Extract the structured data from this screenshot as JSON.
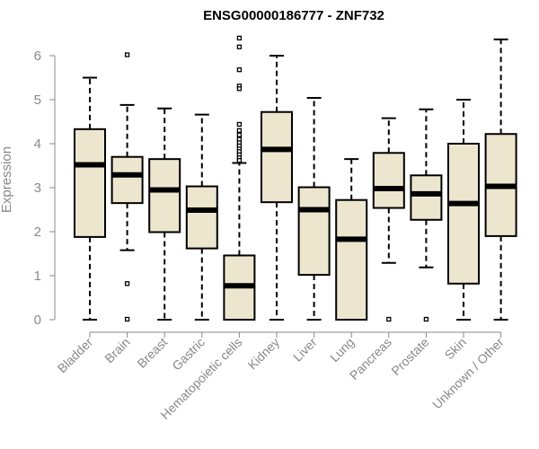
{
  "chart_data": {
    "type": "boxplot",
    "title": "ENSG00000186777 - ZNF732",
    "ylabel": "Expression",
    "ylim": [
      0,
      6.6
    ],
    "yticks": [
      0,
      1,
      2,
      3,
      4,
      5,
      6
    ],
    "colors": {
      "box_fill": "#ede6cf",
      "stroke": "#000000",
      "axis_text": "#888888"
    },
    "categories": [
      "Bladder",
      "Brain",
      "Breast",
      "Gastric",
      "Hematopoietic cells",
      "Kidney",
      "Liver",
      "Lung",
      "Pancreas",
      "Prostate",
      "Skin",
      "Unknown / Other"
    ],
    "boxes": [
      {
        "name": "Bladder",
        "whisker_low": 0,
        "q1": 1.88,
        "median": 3.52,
        "q3": 4.33,
        "whisker_high": 5.5,
        "outliers": []
      },
      {
        "name": "Brain",
        "whisker_low": 1.58,
        "q1": 2.65,
        "median": 3.29,
        "q3": 3.7,
        "whisker_high": 4.88,
        "outliers": [
          6.02,
          0.82,
          0.01
        ]
      },
      {
        "name": "Breast",
        "whisker_low": 0,
        "q1": 1.99,
        "median": 2.95,
        "q3": 3.65,
        "whisker_high": 4.8,
        "outliers": []
      },
      {
        "name": "Gastric",
        "whisker_low": 0,
        "q1": 1.62,
        "median": 2.49,
        "q3": 3.03,
        "whisker_high": 4.66,
        "outliers": []
      },
      {
        "name": "Hematopoietic cells",
        "whisker_low": 0,
        "q1": 0,
        "median": 0.77,
        "q3": 1.46,
        "whisker_high": 3.56,
        "outliers": [
          6.4,
          6.2,
          5.68,
          5.31,
          5.25,
          4.44,
          4.3,
          4.2,
          4.1,
          4.02,
          3.95,
          3.88,
          3.82,
          3.75,
          3.68,
          3.62
        ]
      },
      {
        "name": "Kidney",
        "whisker_low": 0,
        "q1": 2.67,
        "median": 3.87,
        "q3": 4.72,
        "whisker_high": 6.0,
        "outliers": []
      },
      {
        "name": "Liver",
        "whisker_low": 0,
        "q1": 1.02,
        "median": 2.5,
        "q3": 3.01,
        "whisker_high": 5.04,
        "outliers": []
      },
      {
        "name": "Lung",
        "whisker_low": 0,
        "q1": 0,
        "median": 1.83,
        "q3": 2.72,
        "whisker_high": 3.65,
        "outliers": []
      },
      {
        "name": "Pancreas",
        "whisker_low": 1.29,
        "q1": 2.54,
        "median": 2.98,
        "q3": 3.79,
        "whisker_high": 4.58,
        "outliers": [
          0.01
        ]
      },
      {
        "name": "Prostate",
        "whisker_low": 1.19,
        "q1": 2.27,
        "median": 2.86,
        "q3": 3.28,
        "whisker_high": 4.78,
        "outliers": [
          0.01
        ]
      },
      {
        "name": "Skin",
        "whisker_low": 0,
        "q1": 0.82,
        "median": 2.64,
        "q3": 4.0,
        "whisker_high": 5.0,
        "outliers": []
      },
      {
        "name": "Unknown / Other",
        "whisker_low": 0,
        "q1": 1.9,
        "median": 3.03,
        "q3": 4.22,
        "whisker_high": 6.37,
        "outliers": []
      }
    ]
  }
}
